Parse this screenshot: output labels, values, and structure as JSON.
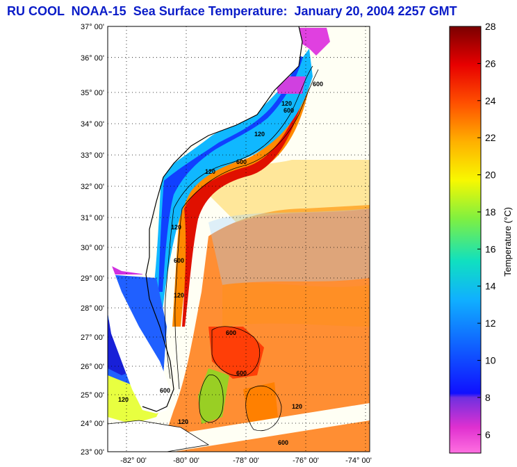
{
  "title": "RU COOL  NOAA-15  Sea Surface Temperature:  January 20, 2004 2257 GMT",
  "map": {
    "lat_labels": [
      "37° 00'",
      "36° 00'",
      "35° 00'",
      "34° 00'",
      "33° 00'",
      "32° 00'",
      "31° 00'",
      "30° 00'",
      "29° 00'",
      "28° 00'",
      "27° 00'",
      "26° 00'",
      "25° 00'",
      "24° 00'",
      "23° 00'"
    ],
    "lon_labels": [
      "-82° 00'",
      "-80° 00'",
      "-78° 00'",
      "-76° 00'",
      "-74° 00'"
    ],
    "contour_labels": [
      "120",
      "600",
      "120",
      "600",
      "120",
      "600",
      "120",
      "600",
      "120",
      "600",
      "120",
      "600",
      "120",
      "600",
      "120",
      "600"
    ]
  },
  "colorbar": {
    "title": "Temperature (°C)",
    "ticks": [
      "28",
      "26",
      "24",
      "22",
      "20",
      "18",
      "16",
      "14",
      "12",
      "10",
      "8",
      "6"
    ],
    "range": [
      5,
      28
    ]
  }
}
